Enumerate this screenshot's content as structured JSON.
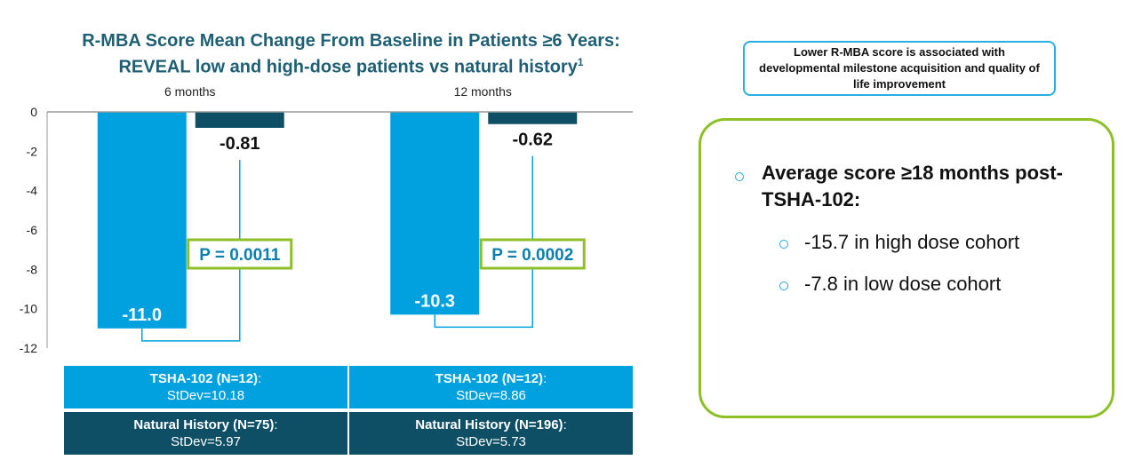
{
  "title": {
    "line1": "R-MBA Score Mean Change From Baseline in Patients ≥6 Years:",
    "line2": "REVEAL low and high-dose patients vs natural history",
    "footnote": "1"
  },
  "chart_data": {
    "type": "bar",
    "categories": [
      "6 months",
      "12 months"
    ],
    "series": [
      {
        "name": "TSHA-102",
        "values": [
          -11.0,
          -10.3
        ],
        "labels": [
          "-11.0",
          "-10.3"
        ],
        "color": "#00a1de"
      },
      {
        "name": "Natural History",
        "values": [
          -0.81,
          -0.62
        ],
        "labels": [
          "-0.81",
          "-0.62"
        ],
        "color": "#0e4f66"
      }
    ],
    "yticks": [
      "0",
      "-2",
      "-4",
      "-6",
      "-8",
      "-10",
      "-12"
    ],
    "ylim": [
      -12,
      0
    ],
    "p_values": [
      "P = 0.0011",
      "P = 0.0002"
    ],
    "grid": false
  },
  "legend_table": {
    "tsha": [
      {
        "label": "TSHA-102 (N=12)",
        "sep": ":",
        "stdev": "StDev=10.18"
      },
      {
        "label": "TSHA-102 (N=12)",
        "sep": ":",
        "stdev": "StDev=8.86"
      }
    ],
    "natural_history": [
      {
        "label": "Natural History (N=75)",
        "sep": ":",
        "stdev": "StDev=5.97"
      },
      {
        "label": "Natural History (N=196)",
        "sep": ":",
        "stdev": "StDev=5.73"
      }
    ]
  },
  "callout": {
    "text": "Lower R-MBA score is associated with developmental milestone acquisition and quality of life improvement"
  },
  "summary": {
    "heading": "Average score ≥18 months post-TSHA-102:",
    "items": [
      "-15.7 in high dose cohort",
      "-7.8 in low dose cohort"
    ]
  },
  "colors": {
    "accent_light": "#00a1de",
    "accent_dark": "#0e4f66",
    "highlight_green": "#8dbf26",
    "title_teal": "#1e5f74"
  }
}
